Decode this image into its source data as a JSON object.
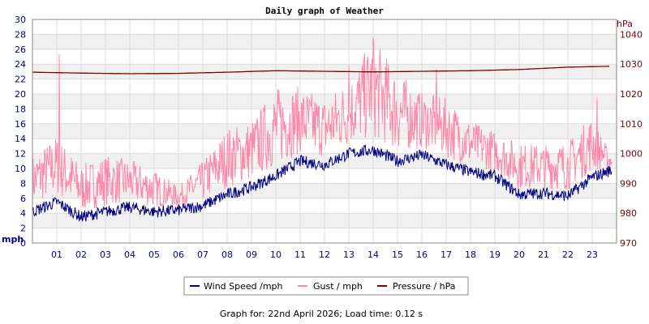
{
  "chart_data": {
    "type": "line",
    "title": "Daily graph of Weather",
    "x_ticks": [
      "01",
      "02",
      "03",
      "04",
      "05",
      "06",
      "07",
      "08",
      "09",
      "10",
      "11",
      "12",
      "13",
      "14",
      "15",
      "16",
      "17",
      "18",
      "19",
      "20",
      "21",
      "22",
      "23"
    ],
    "x_range": [
      0,
      24
    ],
    "left_axis": {
      "label": "mph",
      "range": [
        0,
        30
      ],
      "ticks": [
        0,
        2,
        4,
        6,
        8,
        10,
        12,
        14,
        16,
        18,
        20,
        22,
        24,
        26,
        28,
        30
      ]
    },
    "right_axis": {
      "label": "hPa",
      "range": [
        970,
        1045
      ],
      "ticks": [
        970,
        980,
        990,
        1000,
        1010,
        1020,
        1030,
        1040
      ]
    },
    "series": [
      {
        "name": "Wind Speed /mph",
        "color": "#000080",
        "axis": "left",
        "x": [
          0,
          1,
          2,
          3,
          4,
          5,
          6,
          7,
          8,
          9,
          10,
          11,
          12,
          13,
          14,
          15,
          16,
          17,
          18,
          19,
          20,
          21,
          22,
          23,
          23.7
        ],
        "y": [
          4.2,
          5.5,
          3.5,
          4.2,
          4.8,
          4.2,
          4.4,
          5.0,
          6.5,
          7.5,
          9.0,
          11.0,
          10.5,
          12.0,
          12.5,
          11.0,
          11.8,
          10.5,
          9.5,
          9.0,
          6.5,
          6.7,
          6.3,
          8.8,
          9.7
        ]
      },
      {
        "name": "Gust / mph",
        "color": "#ff88aa",
        "axis": "left",
        "x": [
          0,
          1,
          2,
          3,
          4,
          5,
          6,
          7,
          8,
          9,
          10,
          11,
          12,
          13,
          14,
          15,
          16,
          17,
          18,
          19,
          20,
          21,
          22,
          23,
          23.7
        ],
        "y": [
          8,
          10,
          7,
          8,
          8,
          7,
          6,
          8,
          11,
          12,
          15,
          16,
          15,
          17,
          20,
          17,
          16,
          15,
          13,
          12,
          10,
          10,
          10,
          13,
          11
        ],
        "peaks": [
          {
            "x": 1.1,
            "y": 25.3
          },
          {
            "x": 14.0,
            "y": 27.6
          },
          {
            "x": 13.0,
            "y": 23.8
          },
          {
            "x": 16.6,
            "y": 23.3
          },
          {
            "x": 23.2,
            "y": 19.5
          }
        ]
      },
      {
        "name": "Pressure / hPa",
        "color": "#800000",
        "axis": "right",
        "x": [
          0,
          2,
          4,
          6,
          8,
          10,
          12,
          14,
          16,
          18,
          20,
          22,
          23.8
        ],
        "y": [
          1027.3,
          1027.0,
          1026.8,
          1026.9,
          1027.3,
          1027.8,
          1027.6,
          1027.4,
          1027.6,
          1027.8,
          1028.2,
          1029.0,
          1029.3
        ]
      }
    ],
    "legend_position": "bottom-center"
  },
  "footer": "Graph for: 22nd April 2026; Load time: 0.12 s"
}
